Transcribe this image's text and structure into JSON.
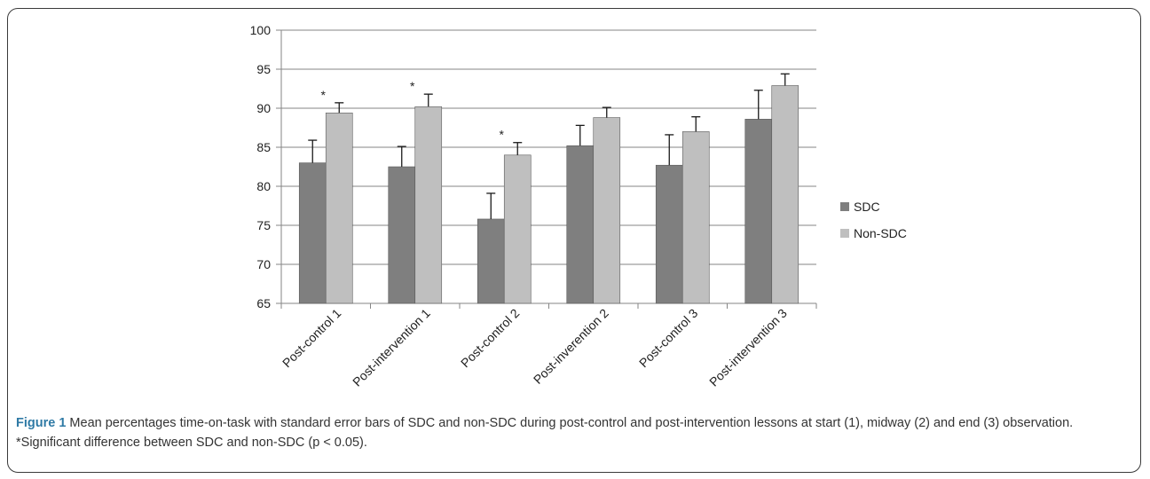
{
  "chart_data": {
    "type": "bar",
    "categories": [
      "Post-control 1",
      "Post-intervention 1",
      "Post-control 2",
      "Post-inverention 2",
      "Post-control 3",
      "Post-intervention 3"
    ],
    "series": [
      {
        "name": "SDC",
        "values": [
          83.0,
          82.5,
          75.8,
          85.2,
          82.7,
          88.6
        ],
        "errors": [
          2.9,
          2.6,
          3.3,
          2.6,
          3.9,
          3.7
        ]
      },
      {
        "name": "Non-SDC",
        "values": [
          89.4,
          90.2,
          84.0,
          88.8,
          87.0,
          92.9
        ],
        "errors": [
          1.3,
          1.6,
          1.6,
          1.3,
          1.9,
          1.5
        ]
      }
    ],
    "annotations": [
      "*",
      "*",
      "*"
    ],
    "significant_categories": [
      0,
      1,
      2
    ],
    "ylim": [
      65,
      100
    ],
    "yticks": [
      65,
      70,
      75,
      80,
      85,
      90,
      95,
      100
    ],
    "grid": true,
    "legend_position": "right",
    "colors": {
      "SDC": "#7f7f7f",
      "Non-SDC": "#bfbfbf",
      "grid": "#868686"
    }
  },
  "caption": {
    "label": "Figure 1",
    "text": " Mean percentages time-on-task with standard error bars of SDC and non-SDC during post-control and post-intervention lessons at start (1), midway (2) and end (3) observation. *Significant difference between SDC and non-SDC (p < 0.05)."
  }
}
